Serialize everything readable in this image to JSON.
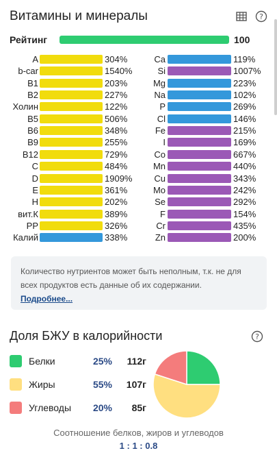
{
  "header": {
    "title": "Витамины и минералы"
  },
  "rating": {
    "label": "Рейтинг",
    "value": "100",
    "fraction": 1.0,
    "color": "#2ecc71"
  },
  "left_nutrients": [
    {
      "name": "A",
      "value": "304%",
      "color": "#f1dc0d"
    },
    {
      "name": "b-car",
      "value": "1540%",
      "color": "#f1dc0d"
    },
    {
      "name": "B1",
      "value": "203%",
      "color": "#f1dc0d"
    },
    {
      "name": "B2",
      "value": "227%",
      "color": "#f1dc0d"
    },
    {
      "name": "Холин",
      "value": "122%",
      "color": "#f1dc0d"
    },
    {
      "name": "B5",
      "value": "506%",
      "color": "#f1dc0d"
    },
    {
      "name": "B6",
      "value": "348%",
      "color": "#f1dc0d"
    },
    {
      "name": "B9",
      "value": "255%",
      "color": "#f1dc0d"
    },
    {
      "name": "B12",
      "value": "729%",
      "color": "#f1dc0d"
    },
    {
      "name": "C",
      "value": "484%",
      "color": "#f1dc0d"
    },
    {
      "name": "D",
      "value": "1909%",
      "color": "#f1dc0d"
    },
    {
      "name": "E",
      "value": "361%",
      "color": "#f1dc0d"
    },
    {
      "name": "H",
      "value": "202%",
      "color": "#f1dc0d"
    },
    {
      "name": "вит.К",
      "value": "389%",
      "color": "#f1dc0d"
    },
    {
      "name": "PP",
      "value": "326%",
      "color": "#f1dc0d"
    },
    {
      "name": "Калий",
      "value": "338%",
      "color": "#3498db"
    }
  ],
  "right_nutrients": [
    {
      "name": "Ca",
      "value": "119%",
      "color": "#3498db"
    },
    {
      "name": "Si",
      "value": "1007%",
      "color": "#9b59b6"
    },
    {
      "name": "Mg",
      "value": "223%",
      "color": "#3498db"
    },
    {
      "name": "Na",
      "value": "102%",
      "color": "#3498db"
    },
    {
      "name": "P",
      "value": "269%",
      "color": "#3498db"
    },
    {
      "name": "Cl",
      "value": "146%",
      "color": "#3498db"
    },
    {
      "name": "Fe",
      "value": "215%",
      "color": "#9b59b6"
    },
    {
      "name": "I",
      "value": "169%",
      "color": "#9b59b6"
    },
    {
      "name": "Co",
      "value": "667%",
      "color": "#9b59b6"
    },
    {
      "name": "Mn",
      "value": "440%",
      "color": "#9b59b6"
    },
    {
      "name": "Cu",
      "value": "343%",
      "color": "#9b59b6"
    },
    {
      "name": "Mo",
      "value": "242%",
      "color": "#9b59b6"
    },
    {
      "name": "Se",
      "value": "292%",
      "color": "#9b59b6"
    },
    {
      "name": "F",
      "value": "154%",
      "color": "#9b59b6"
    },
    {
      "name": "Cr",
      "value": "435%",
      "color": "#9b59b6"
    },
    {
      "name": "Zn",
      "value": "200%",
      "color": "#9b59b6"
    }
  ],
  "note": {
    "text": "Количество нутриентов может быть неполным, т.к. не для всех продуктов есть данные об их содержании.",
    "link": "Подробнее..."
  },
  "bju": {
    "title": "Доля БЖУ в калорийности",
    "items": [
      {
        "name": "Белки",
        "percent": "25%",
        "grams": "112г",
        "share": 25,
        "color": "#2ecc71"
      },
      {
        "name": "Жиры",
        "percent": "55%",
        "grams": "107г",
        "share": 55,
        "color": "#ffdf80"
      },
      {
        "name": "Углеводы",
        "percent": "20%",
        "grams": "85г",
        "share": 20,
        "color": "#f47c7c"
      }
    ],
    "ratio_label": "Соотношение белков, жиров и углеводов",
    "ratio_value": "1 : 1 : 0.8"
  },
  "icons": {
    "table": "table-icon",
    "help": "help-icon"
  }
}
